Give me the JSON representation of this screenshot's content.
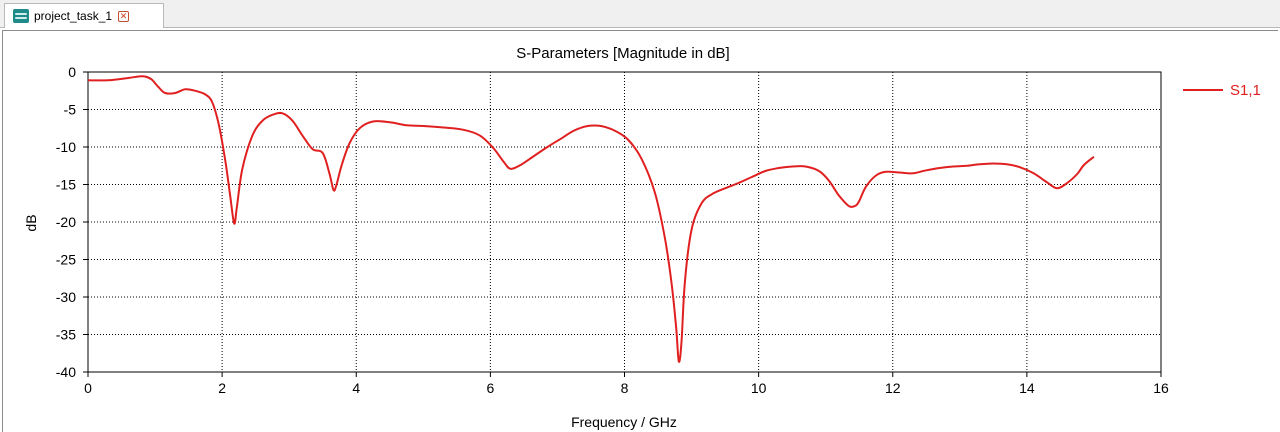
{
  "tab": {
    "icon": "result-view-icon",
    "label": "project_task_1",
    "close_icon": "close-icon"
  },
  "chart_data": {
    "type": "line",
    "title": "S-Parameters [Magnitude in dB]",
    "xlabel": "Frequency / GHz",
    "ylabel": "dB",
    "xlim": [
      0,
      16
    ],
    "ylim": [
      -40,
      0
    ],
    "xticks": [
      0,
      2,
      4,
      6,
      8,
      10,
      12,
      14,
      16
    ],
    "yticks": [
      0,
      -5,
      -10,
      -15,
      -20,
      -25,
      -30,
      -35,
      -40
    ],
    "grid": true,
    "legend_position": "right",
    "series": [
      {
        "name": "S1,1",
        "color": "#e02020",
        "x": [
          0,
          0.3,
          0.6,
          0.75,
          0.85,
          0.95,
          1.05,
          1.15,
          1.3,
          1.45,
          1.6,
          1.75,
          1.85,
          1.95,
          2.05,
          2.12,
          2.18,
          2.22,
          2.3,
          2.45,
          2.6,
          2.75,
          2.9,
          3.05,
          3.2,
          3.35,
          3.5,
          3.6,
          3.66,
          3.7,
          3.78,
          3.9,
          4.05,
          4.25,
          4.5,
          4.75,
          5.0,
          5.3,
          5.6,
          5.85,
          6.05,
          6.2,
          6.3,
          6.45,
          6.65,
          6.85,
          7.05,
          7.25,
          7.45,
          7.65,
          7.85,
          8.05,
          8.25,
          8.45,
          8.6,
          8.7,
          8.77,
          8.81,
          8.85,
          8.9,
          9.0,
          9.15,
          9.3,
          9.5,
          9.7,
          9.9,
          10.1,
          10.3,
          10.5,
          10.7,
          10.9,
          11.05,
          11.2,
          11.35,
          11.45,
          11.5,
          11.6,
          11.75,
          11.9,
          12.1,
          12.3,
          12.5,
          12.7,
          12.9,
          13.1,
          13.3,
          13.5,
          13.7,
          13.9,
          14.1,
          14.3,
          14.45,
          14.6,
          14.75,
          14.85,
          15.0
        ],
        "y": [
          -1.1,
          -1.1,
          -0.8,
          -0.6,
          -0.6,
          -1.0,
          -2.0,
          -2.8,
          -2.8,
          -2.3,
          -2.5,
          -3.0,
          -4.0,
          -7.0,
          -12.0,
          -16.5,
          -20.2,
          -18.0,
          -13.0,
          -8.5,
          -6.5,
          -5.7,
          -5.5,
          -6.5,
          -8.5,
          -10.3,
          -10.8,
          -13.5,
          -15.7,
          -15.2,
          -12.5,
          -9.5,
          -7.5,
          -6.6,
          -6.7,
          -7.1,
          -7.2,
          -7.4,
          -7.7,
          -8.5,
          -10.2,
          -12.0,
          -12.9,
          -12.4,
          -11.2,
          -10.0,
          -8.9,
          -7.8,
          -7.2,
          -7.2,
          -7.8,
          -9.0,
          -11.5,
          -16.0,
          -22.0,
          -28.0,
          -34.0,
          -38.6,
          -36.0,
          -28.0,
          -21.0,
          -17.5,
          -16.3,
          -15.5,
          -14.8,
          -14.0,
          -13.2,
          -12.8,
          -12.6,
          -12.6,
          -13.2,
          -14.5,
          -16.5,
          -17.9,
          -17.8,
          -17.2,
          -15.3,
          -13.8,
          -13.3,
          -13.4,
          -13.5,
          -13.1,
          -12.8,
          -12.6,
          -12.5,
          -12.3,
          -12.2,
          -12.3,
          -12.7,
          -13.5,
          -14.7,
          -15.5,
          -14.8,
          -13.6,
          -12.4,
          -11.3
        ]
      }
    ]
  }
}
